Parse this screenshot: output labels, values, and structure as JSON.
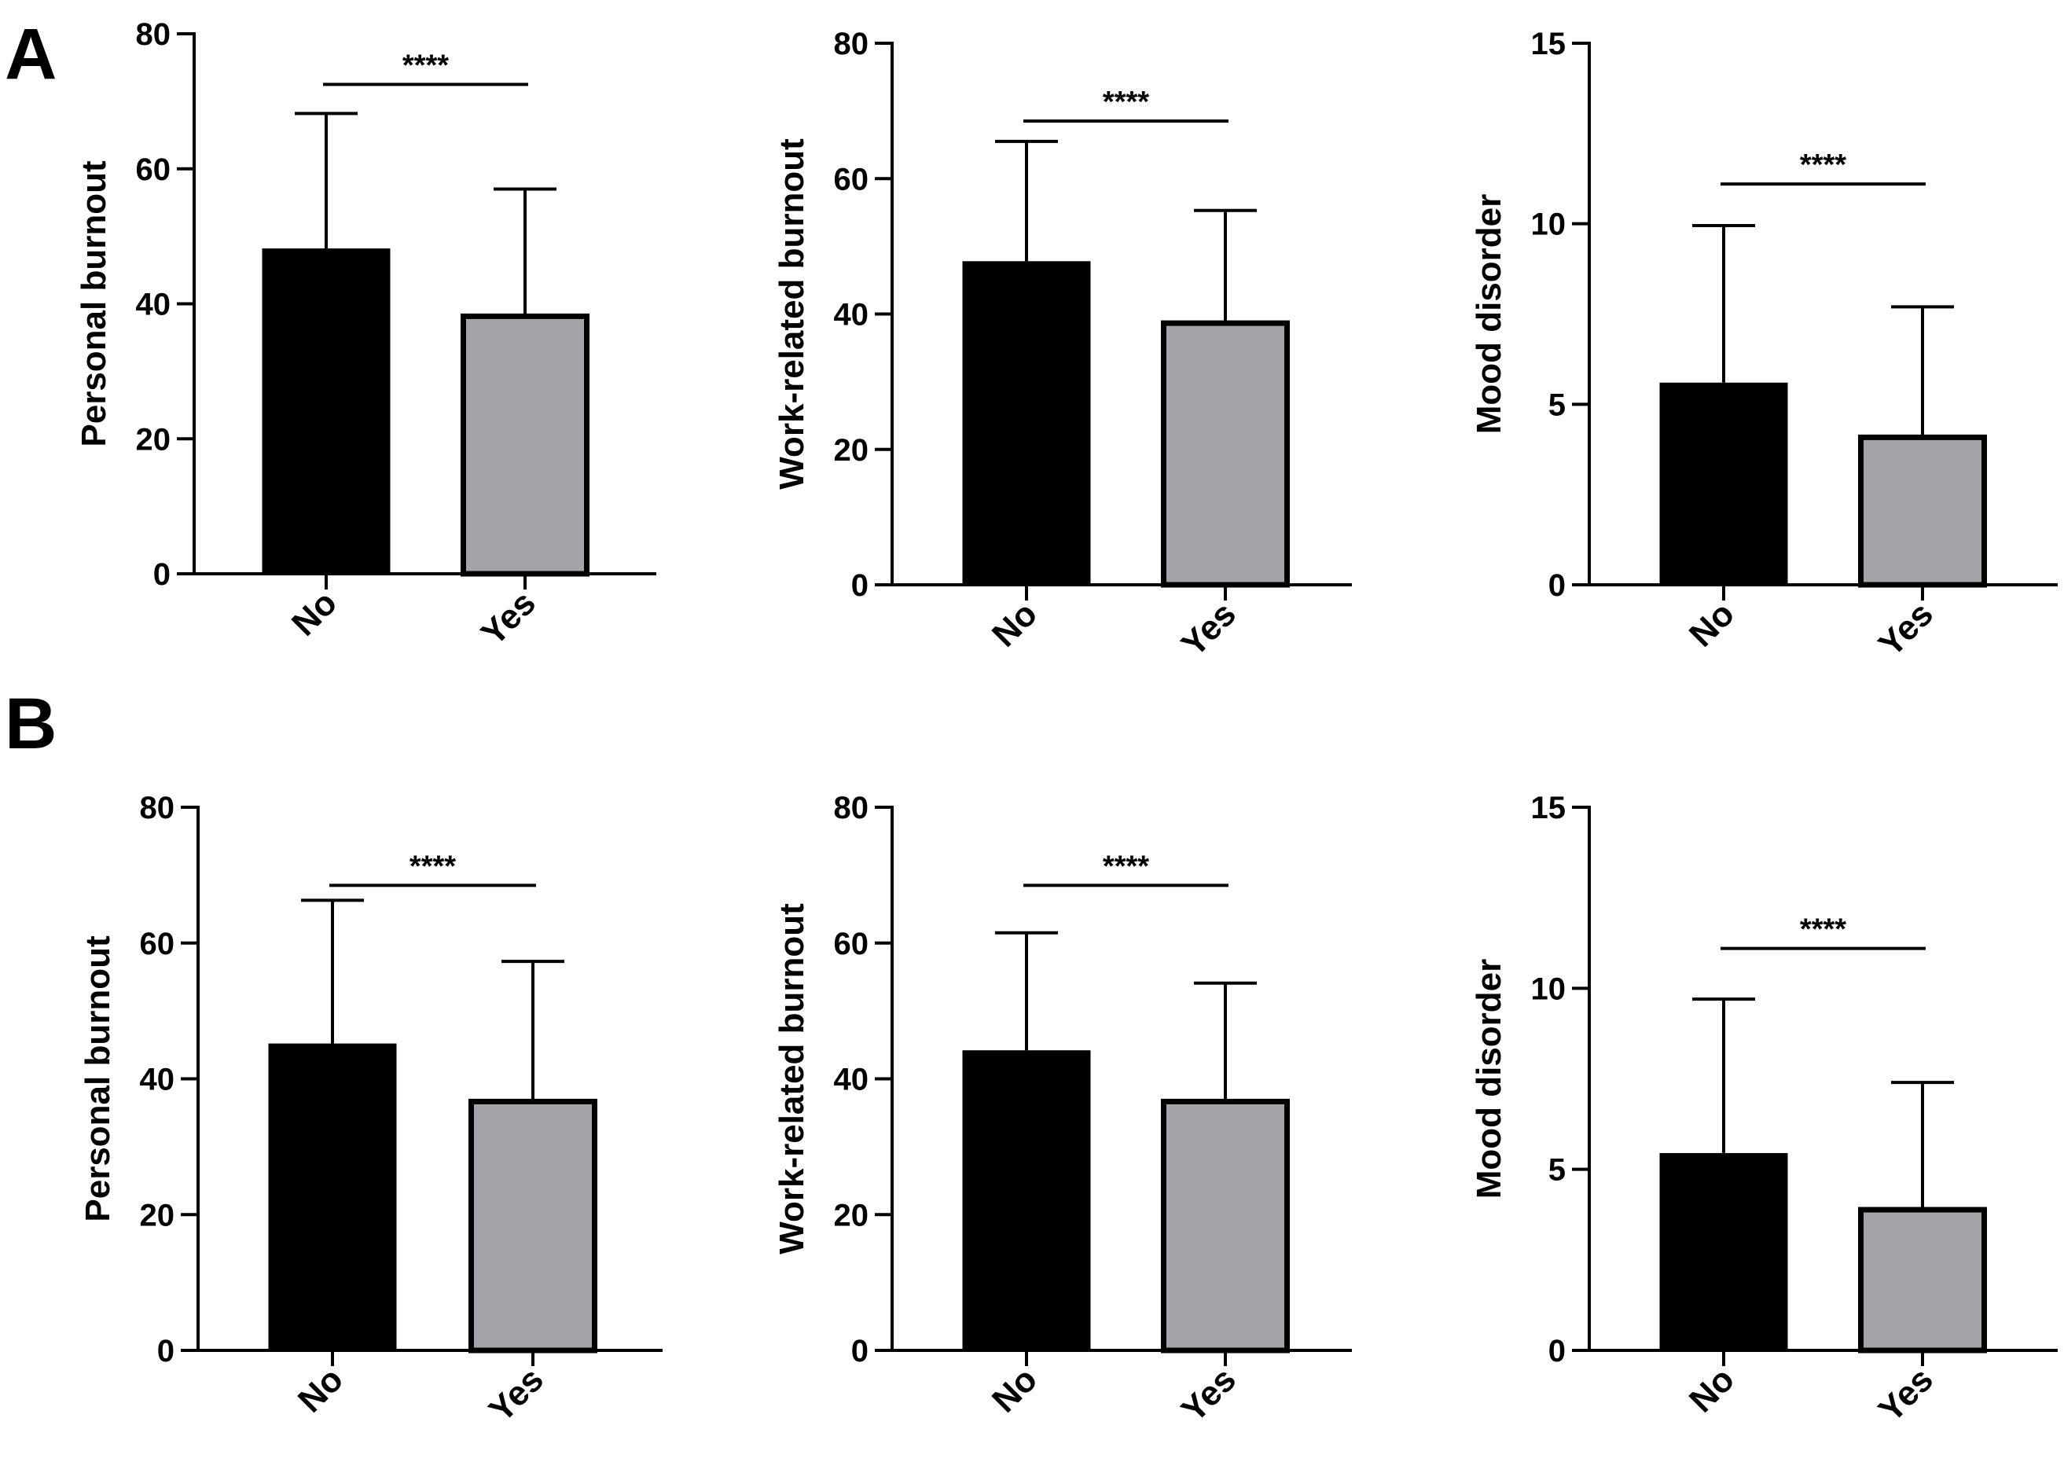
{
  "figure": {
    "panels": [
      {
        "label": "A",
        "charts": [
          0,
          1,
          2
        ]
      },
      {
        "label": "B",
        "charts": [
          3,
          4,
          5
        ]
      }
    ]
  },
  "chart_data": [
    {
      "type": "bar",
      "panel": "A",
      "categories": [
        "No",
        "Yes"
      ],
      "values": [
        48.2,
        38.5
      ],
      "error_upper": [
        68.2,
        57.0
      ],
      "colors": [
        "#000000",
        "#a3a3a8"
      ],
      "ylabel": "Personal burnout",
      "ylim": [
        0,
        80
      ],
      "yticks": [
        0,
        20,
        40,
        60,
        80
      ],
      "significance": {
        "label": "****",
        "between": [
          "No",
          "Yes"
        ],
        "y": 72.5
      }
    },
    {
      "type": "bar",
      "panel": "A",
      "categories": [
        "No",
        "Yes"
      ],
      "values": [
        47.8,
        39.0
      ],
      "error_upper": [
        65.5,
        55.3
      ],
      "colors": [
        "#000000",
        "#a3a3a8"
      ],
      "ylabel": "Work-related burnout",
      "ylim": [
        0,
        80
      ],
      "yticks": [
        0,
        20,
        40,
        60,
        80
      ],
      "significance": {
        "label": "****",
        "between": [
          "No",
          "Yes"
        ],
        "y": 68.5
      }
    },
    {
      "type": "bar",
      "panel": "A",
      "categories": [
        "No",
        "Yes"
      ],
      "values": [
        5.6,
        4.15
      ],
      "error_upper": [
        9.95,
        7.7
      ],
      "colors": [
        "#000000",
        "#a3a3a8"
      ],
      "ylabel": "Mood disorder",
      "ylim": [
        0,
        15
      ],
      "yticks": [
        0,
        5,
        10,
        15
      ],
      "significance": {
        "label": "****",
        "between": [
          "No",
          "Yes"
        ],
        "y": 11.1
      }
    },
    {
      "type": "bar",
      "panel": "B",
      "categories": [
        "No",
        "Yes"
      ],
      "values": [
        45.2,
        37.0
      ],
      "error_upper": [
        66.3,
        57.3
      ],
      "colors": [
        "#000000",
        "#a3a3a8"
      ],
      "ylabel": "Personal burnout",
      "ylim": [
        0,
        80
      ],
      "yticks": [
        0,
        20,
        40,
        60,
        80
      ],
      "significance": {
        "label": "****",
        "between": [
          "No",
          "Yes"
        ],
        "y": 68.5
      }
    },
    {
      "type": "bar",
      "panel": "B",
      "categories": [
        "No",
        "Yes"
      ],
      "values": [
        44.2,
        37.0
      ],
      "error_upper": [
        61.5,
        54.1
      ],
      "colors": [
        "#000000",
        "#a3a3a8"
      ],
      "ylabel": "Work-related burnout",
      "ylim": [
        0,
        80
      ],
      "yticks": [
        0,
        20,
        40,
        60,
        80
      ],
      "significance": {
        "label": "****",
        "between": [
          "No",
          "Yes"
        ],
        "y": 68.5
      }
    },
    {
      "type": "bar",
      "panel": "B",
      "categories": [
        "No",
        "Yes"
      ],
      "values": [
        5.45,
        3.95
      ],
      "error_upper": [
        9.7,
        7.4
      ],
      "colors": [
        "#000000",
        "#a3a3a8"
      ],
      "ylabel": "Mood disorder",
      "ylim": [
        0,
        15
      ],
      "yticks": [
        0,
        5,
        10,
        15
      ],
      "significance": {
        "label": "****",
        "between": [
          "No",
          "Yes"
        ],
        "y": 11.1
      }
    }
  ]
}
